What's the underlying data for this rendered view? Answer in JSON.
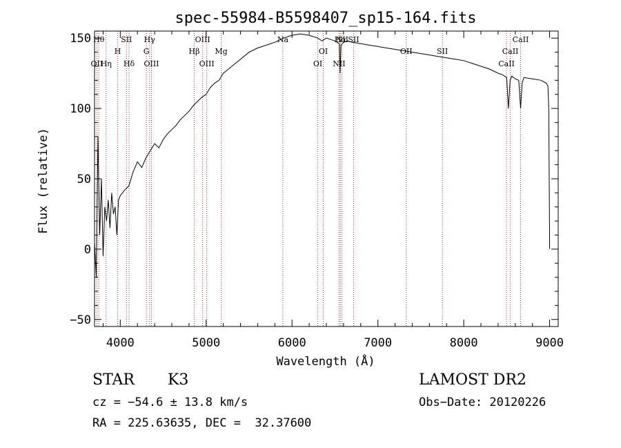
{
  "chart_data": {
    "type": "line",
    "title": "spec-55984-B5598407_sp15-164.fits",
    "xlabel": "Wavelength (Å)",
    "ylabel": "Flux (relative)",
    "xlim": [
      3700,
      9100
    ],
    "ylim": [
      -55,
      155
    ],
    "xticks": [
      4000,
      5000,
      6000,
      7000,
      8000,
      9000
    ],
    "yticks": [
      -50,
      0,
      50,
      100,
      150
    ],
    "grid": false,
    "line_color": "#000000",
    "marker_line_color": "#b03030",
    "series": [
      {
        "x": [
          3700,
          3720,
          3740,
          3760,
          3780,
          3800,
          3820,
          3840,
          3860,
          3880,
          3900,
          3920,
          3940,
          3960,
          3980,
          4000,
          4050,
          4100,
          4150,
          4200,
          4250,
          4300,
          4350,
          4400,
          4450,
          4500,
          4550,
          4600,
          4650,
          4700,
          4750,
          4800,
          4850,
          4900,
          4950,
          5000,
          5050,
          5100,
          5150,
          5200,
          5300,
          5400,
          5500,
          5600,
          5700,
          5800,
          5900,
          6000,
          6100,
          6200,
          6300,
          6350,
          6400,
          6450,
          6500,
          6550,
          6560,
          6570,
          6600,
          6650,
          6700,
          6800,
          6900,
          7000,
          7100,
          7200,
          7300,
          7400,
          7500,
          7600,
          7700,
          7800,
          7900,
          8000,
          8100,
          8200,
          8300,
          8400,
          8450,
          8500,
          8520,
          8540,
          8560,
          8580,
          8600,
          8640,
          8662,
          8680,
          8700,
          8800,
          8900,
          8960,
          8980,
          8990,
          9000
        ],
        "y": [
          5,
          -20,
          80,
          10,
          50,
          -5,
          30,
          20,
          35,
          15,
          40,
          25,
          30,
          10,
          35,
          38,
          42,
          45,
          55,
          62,
          58,
          65,
          70,
          75,
          72,
          78,
          82,
          85,
          88,
          92,
          95,
          98,
          102,
          105,
          108,
          110,
          115,
          118,
          120,
          125,
          130,
          135,
          140,
          143,
          145,
          147,
          150,
          152,
          153,
          152,
          150,
          148,
          150,
          149,
          148,
          146,
          125,
          145,
          147,
          148,
          147,
          146,
          145,
          144,
          143,
          142,
          141,
          140,
          139,
          138,
          137,
          136,
          135,
          134,
          132,
          130,
          128,
          125,
          124,
          122,
          100,
          120,
          123,
          122,
          121,
          120,
          100,
          118,
          122,
          121,
          120,
          118,
          116,
          100,
          0
        ]
      }
    ],
    "lines": [
      {
        "x": 3727,
        "label": "OII",
        "row": 2
      },
      {
        "x": 3750,
        "label": "Hθ",
        "row": 0
      },
      {
        "x": 3835,
        "label": "Hη",
        "row": 2
      },
      {
        "x": 3970,
        "label": "H",
        "row": 1
      },
      {
        "x": 4072,
        "label": "SII",
        "row": 0
      },
      {
        "x": 4102,
        "label": "Hδ",
        "row": 2
      },
      {
        "x": 4304,
        "label": "G",
        "row": 1
      },
      {
        "x": 4341,
        "label": "Hγ",
        "row": 0
      },
      {
        "x": 4363,
        "label": "OIII",
        "row": 2
      },
      {
        "x": 4861,
        "label": "Hβ",
        "row": 1
      },
      {
        "x": 4959,
        "label": "OIII",
        "row": 0
      },
      {
        "x": 5007,
        "label": "OIII",
        "row": 2
      },
      {
        "x": 5175,
        "label": "Mg",
        "row": 1
      },
      {
        "x": 5893,
        "label": "Na",
        "row": 0
      },
      {
        "x": 6300,
        "label": "OI",
        "row": 2
      },
      {
        "x": 6364,
        "label": "OI",
        "row": 1
      },
      {
        "x": 6548,
        "label": "NII",
        "row": 2
      },
      {
        "x": 6563,
        "label": "Hα",
        "row": 0
      },
      {
        "x": 6583,
        "label": "NII",
        "row": 0
      },
      {
        "x": 6717,
        "label": "SII",
        "row": 0
      },
      {
        "x": 7330,
        "label": "OII",
        "row": 1
      },
      {
        "x": 7751,
        "label": "SII",
        "row": 1
      },
      {
        "x": 8498,
        "label": "CaII",
        "row": 2
      },
      {
        "x": 8542,
        "label": "CaII",
        "row": 1
      },
      {
        "x": 8662,
        "label": "CaII",
        "row": 0
      }
    ]
  },
  "info": {
    "object_class": "STAR",
    "subclass": "K3",
    "survey": "LAMOST DR2",
    "redshift": "cz = −54.6 ± 13.8 km/s",
    "obs_date": "Obs−Date: 20120226",
    "coords": "RA = 225.63635, DEC =  32.37600"
  }
}
